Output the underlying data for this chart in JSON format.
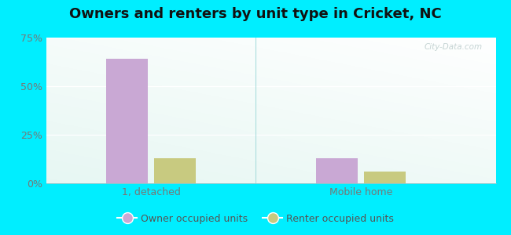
{
  "title": "Owners and renters by unit type in Cricket, NC",
  "categories": [
    "1, detached",
    "Mobile home"
  ],
  "owner_values": [
    64,
    13
  ],
  "renter_values": [
    13,
    6
  ],
  "owner_color": "#c9a8d4",
  "renter_color": "#c8ca80",
  "owner_label": "Owner occupied units",
  "renter_label": "Renter occupied units",
  "ylim": [
    0,
    75
  ],
  "yticks": [
    0,
    25,
    50,
    75
  ],
  "yticklabels": [
    "0%",
    "25%",
    "50%",
    "75%"
  ],
  "outer_background": "#00eeff",
  "title_fontsize": 13,
  "watermark": "City-Data.com",
  "bar_width": 0.28,
  "legend_marker_size": 10
}
